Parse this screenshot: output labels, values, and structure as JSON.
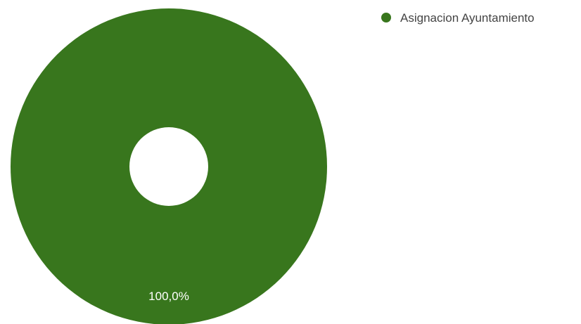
{
  "chart_data": {
    "type": "pie",
    "donut": true,
    "slices": [
      {
        "label": "Asignacion Ayuntamiento",
        "value": 100.0,
        "display": "100,0%",
        "color": "#38761d"
      }
    ],
    "legend": {
      "position": "top-right"
    }
  }
}
